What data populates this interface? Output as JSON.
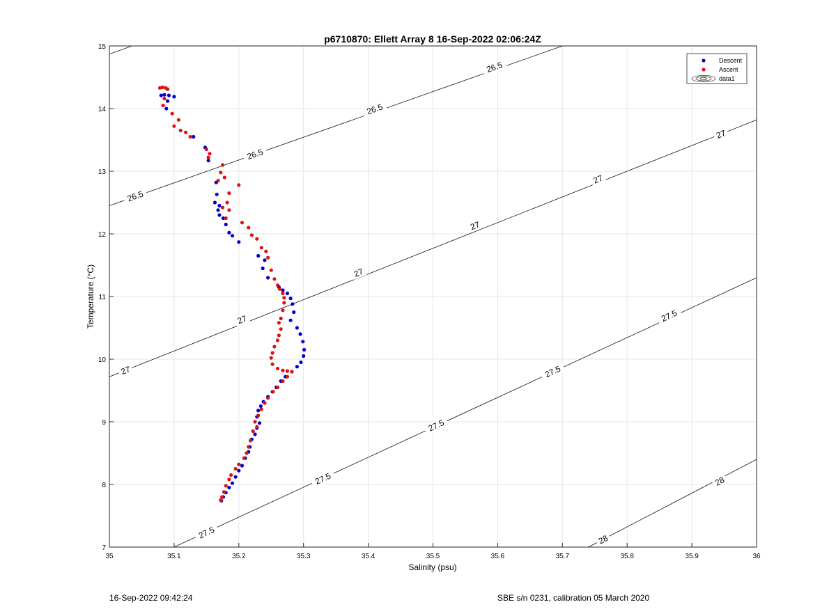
{
  "chart_data": {
    "type": "scatter",
    "title": "p6710870: Ellett Array 8 16-Sep-2022 02:06:24Z",
    "xlabel": "Salinity (psu)",
    "ylabel": "Temperature (°C)",
    "xlim": [
      35,
      36
    ],
    "ylim": [
      7,
      15
    ],
    "x_ticks": [
      35,
      35.1,
      35.2,
      35.3,
      35.4,
      35.5,
      35.6,
      35.7,
      35.8,
      35.9,
      36
    ],
    "x_tick_labels": [
      "35",
      "35.1",
      "35.2",
      "35.3",
      "35.4",
      "35.5",
      "35.6",
      "35.7",
      "35.8",
      "35.9",
      "36"
    ],
    "y_ticks": [
      7,
      8,
      9,
      10,
      11,
      12,
      13,
      14,
      15
    ],
    "y_tick_labels": [
      "7",
      "8",
      "9",
      "10",
      "11",
      "12",
      "13",
      "14",
      "15"
    ],
    "grid": true,
    "legend_position": "top-right",
    "series": [
      {
        "name": "Descent",
        "color": "#0000cc",
        "points": [
          [
            35.08,
            14.21
          ],
          [
            35.085,
            14.22
          ],
          [
            35.092,
            14.21
          ],
          [
            35.1,
            14.19
          ],
          [
            35.09,
            14.12
          ],
          [
            35.088,
            14.0
          ],
          [
            35.13,
            13.55
          ],
          [
            35.148,
            13.38
          ],
          [
            35.153,
            13.17
          ],
          [
            35.165,
            12.82
          ],
          [
            35.166,
            12.63
          ],
          [
            35.163,
            12.5
          ],
          [
            35.17,
            12.45
          ],
          [
            35.168,
            12.38
          ],
          [
            35.17,
            12.3
          ],
          [
            35.176,
            12.25
          ],
          [
            35.18,
            12.15
          ],
          [
            35.185,
            12.02
          ],
          [
            35.19,
            11.97
          ],
          [
            35.2,
            11.87
          ],
          [
            35.23,
            11.65
          ],
          [
            35.24,
            11.58
          ],
          [
            35.237,
            11.45
          ],
          [
            35.245,
            11.3
          ],
          [
            35.262,
            11.15
          ],
          [
            35.268,
            11.1
          ],
          [
            35.275,
            11.05
          ],
          [
            35.28,
            10.97
          ],
          [
            35.283,
            10.88
          ],
          [
            35.285,
            10.75
          ],
          [
            35.28,
            10.62
          ],
          [
            35.29,
            10.5
          ],
          [
            35.295,
            10.4
          ],
          [
            35.299,
            10.28
          ],
          [
            35.301,
            10.15
          ],
          [
            35.3,
            10.05
          ],
          [
            35.296,
            9.95
          ],
          [
            35.29,
            9.88
          ],
          [
            35.282,
            9.8
          ],
          [
            35.272,
            9.72
          ],
          [
            35.265,
            9.65
          ],
          [
            35.258,
            9.55
          ],
          [
            35.252,
            9.48
          ],
          [
            35.245,
            9.4
          ],
          [
            35.238,
            9.32
          ],
          [
            35.234,
            9.25
          ],
          [
            35.23,
            9.18
          ],
          [
            35.228,
            9.08
          ],
          [
            35.232,
            8.98
          ],
          [
            35.228,
            8.9
          ],
          [
            35.225,
            8.8
          ],
          [
            35.22,
            8.72
          ],
          [
            35.217,
            8.6
          ],
          [
            35.215,
            8.52
          ],
          [
            35.21,
            8.42
          ],
          [
            35.205,
            8.3
          ],
          [
            35.2,
            8.22
          ],
          [
            35.195,
            8.12
          ],
          [
            35.19,
            8.02
          ],
          [
            35.185,
            7.95
          ],
          [
            35.18,
            7.87
          ],
          [
            35.176,
            7.8
          ],
          [
            35.173,
            7.74
          ]
        ]
      },
      {
        "name": "Ascent",
        "color": "#dd1111",
        "points": [
          [
            35.078,
            14.33
          ],
          [
            35.082,
            14.34
          ],
          [
            35.087,
            14.33
          ],
          [
            35.09,
            14.31
          ],
          [
            35.085,
            14.16
          ],
          [
            35.083,
            14.05
          ],
          [
            35.097,
            13.92
          ],
          [
            35.107,
            13.82
          ],
          [
            35.1,
            13.72
          ],
          [
            35.11,
            13.65
          ],
          [
            35.118,
            13.62
          ],
          [
            35.125,
            13.55
          ],
          [
            35.15,
            13.35
          ],
          [
            35.155,
            13.28
          ],
          [
            35.153,
            13.22
          ],
          [
            35.175,
            13.1
          ],
          [
            35.172,
            12.98
          ],
          [
            35.178,
            12.9
          ],
          [
            35.168,
            12.85
          ],
          [
            35.185,
            12.65
          ],
          [
            35.182,
            12.5
          ],
          [
            35.175,
            12.42
          ],
          [
            35.185,
            12.38
          ],
          [
            35.2,
            12.78
          ],
          [
            35.18,
            12.25
          ],
          [
            35.205,
            12.18
          ],
          [
            35.215,
            12.1
          ],
          [
            35.22,
            11.98
          ],
          [
            35.228,
            11.92
          ],
          [
            35.235,
            11.78
          ],
          [
            35.242,
            11.72
          ],
          [
            35.245,
            11.62
          ],
          [
            35.25,
            11.42
          ],
          [
            35.255,
            11.28
          ],
          [
            35.26,
            11.18
          ],
          [
            35.263,
            11.12
          ],
          [
            35.268,
            11.05
          ],
          [
            35.27,
            10.98
          ],
          [
            35.27,
            10.9
          ],
          [
            35.268,
            10.78
          ],
          [
            35.265,
            10.65
          ],
          [
            35.262,
            10.58
          ],
          [
            35.265,
            10.48
          ],
          [
            35.262,
            10.38
          ],
          [
            35.26,
            10.3
          ],
          [
            35.255,
            10.2
          ],
          [
            35.252,
            10.1
          ],
          [
            35.25,
            10.02
          ],
          [
            35.252,
            9.92
          ],
          [
            35.26,
            9.85
          ],
          [
            35.268,
            9.82
          ],
          [
            35.275,
            9.81
          ],
          [
            35.282,
            9.8
          ],
          [
            35.275,
            9.72
          ],
          [
            35.268,
            9.65
          ],
          [
            35.26,
            9.55
          ],
          [
            35.253,
            9.48
          ],
          [
            35.245,
            9.38
          ],
          [
            35.24,
            9.3
          ],
          [
            35.235,
            9.2
          ],
          [
            35.23,
            9.1
          ],
          [
            35.225,
            9.0
          ],
          [
            35.228,
            8.92
          ],
          [
            35.222,
            8.85
          ],
          [
            35.218,
            8.7
          ],
          [
            35.215,
            8.6
          ],
          [
            35.212,
            8.5
          ],
          [
            35.208,
            8.42
          ],
          [
            35.2,
            8.32
          ],
          [
            35.195,
            8.25
          ],
          [
            35.188,
            8.15
          ],
          [
            35.185,
            8.08
          ],
          [
            35.18,
            7.98
          ],
          [
            35.177,
            7.88
          ],
          [
            35.174,
            7.8
          ],
          [
            35.172,
            7.75
          ]
        ]
      }
    ],
    "contours": [
      {
        "level": 26.5,
        "line": [
          [
            35.0,
            12.45
          ],
          [
            35.7,
            15.0
          ]
        ],
        "labels": [
          {
            "text": "26.5",
            "s": 35.04,
            "t": 12.6
          },
          {
            "text": "26.5",
            "s": 35.225,
            "t": 13.27
          },
          {
            "text": "26.5",
            "s": 35.41,
            "t": 13.99
          },
          {
            "text": "26.5",
            "s": 35.595,
            "t": 14.66
          }
        ]
      },
      {
        "level": 26.5,
        "line": [
          [
            35.0,
            14.87
          ],
          [
            35.035,
            15.0
          ]
        ],
        "labels": []
      },
      {
        "level": 27,
        "line": [
          [
            35.0,
            9.72
          ],
          [
            36.0,
            13.82
          ]
        ],
        "labels": [
          {
            "text": "27",
            "s": 35.025,
            "t": 9.82
          },
          {
            "text": "27",
            "s": 35.205,
            "t": 10.63
          },
          {
            "text": "27",
            "s": 35.385,
            "t": 11.38
          },
          {
            "text": "27",
            "s": 35.565,
            "t": 12.13
          },
          {
            "text": "27",
            "s": 35.755,
            "t": 12.87
          },
          {
            "text": "27",
            "s": 35.945,
            "t": 13.59
          }
        ]
      },
      {
        "level": 27.5,
        "line": [
          [
            35.1,
            7.0
          ],
          [
            36.0,
            11.3
          ]
        ],
        "labels": [
          {
            "text": "27.5",
            "s": 35.15,
            "t": 7.23
          },
          {
            "text": "27.5",
            "s": 35.33,
            "t": 8.09
          },
          {
            "text": "27.5",
            "s": 35.505,
            "t": 8.94
          },
          {
            "text": "27.5",
            "s": 35.685,
            "t": 9.8
          },
          {
            "text": "27.5",
            "s": 35.865,
            "t": 10.69
          }
        ]
      },
      {
        "level": 28,
        "line": [
          [
            35.74,
            7.0
          ],
          [
            36.0,
            8.4
          ]
        ],
        "labels": [
          {
            "text": "28",
            "s": 35.763,
            "t": 7.12
          },
          {
            "text": "28",
            "s": 35.943,
            "t": 8.05
          }
        ]
      }
    ],
    "legend": [
      {
        "label": "Descent",
        "marker": "dot",
        "color": "#0000cc"
      },
      {
        "label": "Ascent",
        "marker": "dot",
        "color": "#dd1111"
      },
      {
        "label": "data1",
        "marker": "contour"
      }
    ]
  },
  "footer": {
    "timestamp": "16-Sep-2022 09:42:24",
    "instrument": "SBE s/n 0231, calibration 05 March 2020"
  }
}
